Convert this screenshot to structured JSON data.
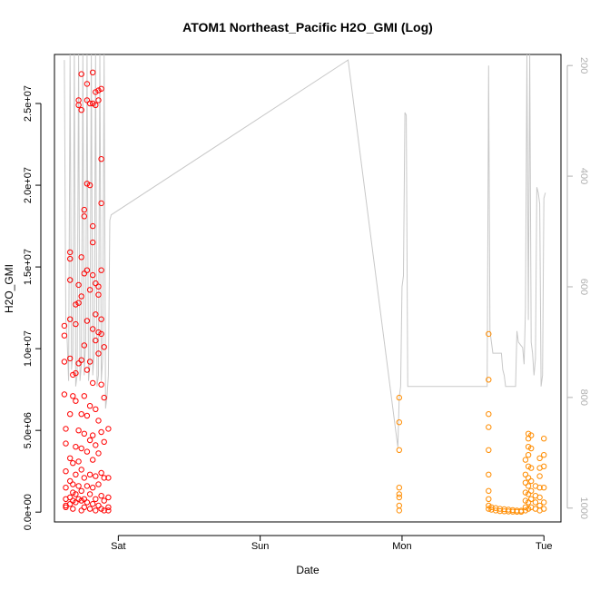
{
  "chart_data": {
    "type": "scatter",
    "title": "ATOM1 Northeast_Pacific H2O_GMI (Log)",
    "xlabel": "Date",
    "ylabel": "H2O_GMI",
    "x_ticks": [
      {
        "label": "Sat",
        "day": 1.0
      },
      {
        "label": "Sun",
        "day": 2.0
      },
      {
        "label": "Mon",
        "day": 3.0
      },
      {
        "label": "Tue",
        "day": 4.0
      }
    ],
    "xlim_days": [
      0.55,
      4.12
    ],
    "y_ticks": [
      {
        "label": "0.0e+00",
        "value": 0
      },
      {
        "label": "5.0e+06",
        "value": 5000000
      },
      {
        "label": "1.0e+07",
        "value": 10000000
      },
      {
        "label": "1.5e+07",
        "value": 15000000
      },
      {
        "label": "2.0e+07",
        "value": 20000000
      },
      {
        "label": "2.5e+07",
        "value": 25000000
      }
    ],
    "ylim": [
      -600000,
      28000000
    ],
    "y2_ticks": [
      {
        "label": "200",
        "value": 200
      },
      {
        "label": "400",
        "value": 400
      },
      {
        "label": "600",
        "value": 600
      },
      {
        "label": "800",
        "value": 800
      },
      {
        "label": "1000",
        "value": 1000
      }
    ],
    "y2lim": [
      1025,
      180
    ],
    "y2_reversed": true,
    "colors": {
      "series_sat": "#ff0000",
      "series_mon_tue": "#ff8c00",
      "secondary_line": "#c8c8c8",
      "axis": "#000000",
      "secondary_axis": "#b0b0b0"
    },
    "series": [
      {
        "color": "#ff0000",
        "points": [
          [
            0.62,
            7200000
          ],
          [
            0.62,
            9200000
          ],
          [
            0.62,
            10800000
          ],
          [
            0.62,
            11400000
          ],
          [
            0.63,
            5100000
          ],
          [
            0.63,
            4200000
          ],
          [
            0.63,
            2500000
          ],
          [
            0.63,
            1500000
          ],
          [
            0.63,
            800000
          ],
          [
            0.63,
            400000
          ],
          [
            0.63,
            300000
          ],
          [
            0.66,
            15900000
          ],
          [
            0.66,
            15500000
          ],
          [
            0.66,
            14200000
          ],
          [
            0.66,
            11800000
          ],
          [
            0.66,
            9400000
          ],
          [
            0.66,
            6000000
          ],
          [
            0.66,
            3300000
          ],
          [
            0.66,
            1900000
          ],
          [
            0.66,
            900000
          ],
          [
            0.66,
            500000
          ],
          [
            0.68,
            8400000
          ],
          [
            0.68,
            7100000
          ],
          [
            0.68,
            3000000
          ],
          [
            0.68,
            1700000
          ],
          [
            0.68,
            1200000
          ],
          [
            0.68,
            700000
          ],
          [
            0.68,
            200000
          ],
          [
            0.7,
            12700000
          ],
          [
            0.7,
            11500000
          ],
          [
            0.7,
            8500000
          ],
          [
            0.7,
            6800000
          ],
          [
            0.7,
            4000000
          ],
          [
            0.7,
            2300000
          ],
          [
            0.7,
            1100000
          ],
          [
            0.7,
            600000
          ],
          [
            0.72,
            25200000
          ],
          [
            0.72,
            24900000
          ],
          [
            0.72,
            13900000
          ],
          [
            0.72,
            12800000
          ],
          [
            0.72,
            9100000
          ],
          [
            0.72,
            5000000
          ],
          [
            0.72,
            3100000
          ],
          [
            0.72,
            1600000
          ],
          [
            0.72,
            800000
          ],
          [
            0.74,
            26800000
          ],
          [
            0.74,
            24600000
          ],
          [
            0.74,
            15600000
          ],
          [
            0.74,
            13200000
          ],
          [
            0.74,
            9300000
          ],
          [
            0.74,
            6000000
          ],
          [
            0.74,
            3900000
          ],
          [
            0.74,
            2600000
          ],
          [
            0.74,
            1300000
          ],
          [
            0.74,
            700000
          ],
          [
            0.74,
            100000
          ],
          [
            0.76,
            18500000
          ],
          [
            0.76,
            18100000
          ],
          [
            0.76,
            14600000
          ],
          [
            0.76,
            10200000
          ],
          [
            0.76,
            7100000
          ],
          [
            0.76,
            4800000
          ],
          [
            0.76,
            2100000
          ],
          [
            0.76,
            800000
          ],
          [
            0.76,
            300000
          ],
          [
            0.78,
            26200000
          ],
          [
            0.78,
            25200000
          ],
          [
            0.78,
            20100000
          ],
          [
            0.78,
            14800000
          ],
          [
            0.78,
            11700000
          ],
          [
            0.78,
            8700000
          ],
          [
            0.78,
            5900000
          ],
          [
            0.78,
            3700000
          ],
          [
            0.78,
            1600000
          ],
          [
            0.78,
            600000
          ],
          [
            0.8,
            25000000
          ],
          [
            0.8,
            20000000
          ],
          [
            0.8,
            13600000
          ],
          [
            0.8,
            9200000
          ],
          [
            0.8,
            6500000
          ],
          [
            0.8,
            4400000
          ],
          [
            0.8,
            2300000
          ],
          [
            0.8,
            1100000
          ],
          [
            0.8,
            200000
          ],
          [
            0.82,
            26900000
          ],
          [
            0.82,
            25000000
          ],
          [
            0.82,
            17500000
          ],
          [
            0.82,
            16500000
          ],
          [
            0.82,
            14500000
          ],
          [
            0.82,
            11200000
          ],
          [
            0.82,
            7900000
          ],
          [
            0.82,
            4700000
          ],
          [
            0.82,
            3200000
          ],
          [
            0.82,
            1500000
          ],
          [
            0.82,
            500000
          ],
          [
            0.84,
            25700000
          ],
          [
            0.84,
            24900000
          ],
          [
            0.84,
            14000000
          ],
          [
            0.84,
            12100000
          ],
          [
            0.84,
            10500000
          ],
          [
            0.84,
            6300000
          ],
          [
            0.84,
            4100000
          ],
          [
            0.84,
            2200000
          ],
          [
            0.84,
            800000
          ],
          [
            0.84,
            100000
          ],
          [
            0.86,
            25800000
          ],
          [
            0.86,
            25200000
          ],
          [
            0.86,
            13800000
          ],
          [
            0.86,
            13300000
          ],
          [
            0.86,
            11000000
          ],
          [
            0.86,
            9700000
          ],
          [
            0.86,
            5600000
          ],
          [
            0.86,
            3600000
          ],
          [
            0.86,
            1700000
          ],
          [
            0.86,
            400000
          ],
          [
            0.88,
            25900000
          ],
          [
            0.88,
            21600000
          ],
          [
            0.88,
            18900000
          ],
          [
            0.88,
            14800000
          ],
          [
            0.88,
            11800000
          ],
          [
            0.88,
            10900000
          ],
          [
            0.88,
            7800000
          ],
          [
            0.88,
            4900000
          ],
          [
            0.88,
            2400000
          ],
          [
            0.88,
            1000000
          ],
          [
            0.88,
            200000
          ],
          [
            0.9,
            10100000
          ],
          [
            0.9,
            7000000
          ],
          [
            0.9,
            4300000
          ],
          [
            0.9,
            2100000
          ],
          [
            0.9,
            700000
          ],
          [
            0.9,
            100000
          ],
          [
            0.93,
            5100000
          ],
          [
            0.93,
            2100000
          ],
          [
            0.93,
            900000
          ],
          [
            0.93,
            300000
          ],
          [
            0.93,
            100000
          ]
        ]
      },
      {
        "color": "#ff8c00",
        "points": [
          [
            2.98,
            7000000
          ],
          [
            2.98,
            5500000
          ],
          [
            2.98,
            3800000
          ],
          [
            2.98,
            1500000
          ],
          [
            2.98,
            1100000
          ],
          [
            2.98,
            900000
          ],
          [
            2.98,
            400000
          ],
          [
            2.98,
            100000
          ],
          [
            3.61,
            10900000
          ],
          [
            3.61,
            8100000
          ],
          [
            3.61,
            6000000
          ],
          [
            3.61,
            5200000
          ],
          [
            3.61,
            3800000
          ],
          [
            3.61,
            2300000
          ],
          [
            3.61,
            1300000
          ],
          [
            3.61,
            800000
          ],
          [
            3.61,
            400000
          ],
          [
            3.61,
            200000
          ],
          [
            3.63,
            300000
          ],
          [
            3.63,
            150000
          ],
          [
            3.66,
            250000
          ],
          [
            3.66,
            100000
          ],
          [
            3.69,
            200000
          ],
          [
            3.69,
            60000
          ],
          [
            3.72,
            180000
          ],
          [
            3.72,
            50000
          ],
          [
            3.75,
            150000
          ],
          [
            3.75,
            40000
          ],
          [
            3.78,
            120000
          ],
          [
            3.78,
            30000
          ],
          [
            3.81,
            100000
          ],
          [
            3.81,
            20000
          ],
          [
            3.84,
            90000
          ],
          [
            3.84,
            20000
          ],
          [
            3.87,
            3200000
          ],
          [
            3.87,
            2300000
          ],
          [
            3.87,
            1800000
          ],
          [
            3.87,
            1200000
          ],
          [
            3.87,
            700000
          ],
          [
            3.87,
            300000
          ],
          [
            3.87,
            100000
          ],
          [
            3.89,
            4800000
          ],
          [
            3.89,
            4500000
          ],
          [
            3.89,
            4000000
          ],
          [
            3.89,
            3500000
          ],
          [
            3.89,
            2800000
          ],
          [
            3.89,
            2100000
          ],
          [
            3.89,
            1600000
          ],
          [
            3.89,
            1100000
          ],
          [
            3.89,
            600000
          ],
          [
            3.89,
            200000
          ],
          [
            3.91,
            4700000
          ],
          [
            3.91,
            3900000
          ],
          [
            3.91,
            2700000
          ],
          [
            3.91,
            1900000
          ],
          [
            3.91,
            1300000
          ],
          [
            3.91,
            800000
          ],
          [
            3.91,
            300000
          ],
          [
            3.94,
            1600000
          ],
          [
            3.94,
            1000000
          ],
          [
            3.94,
            600000
          ],
          [
            3.94,
            200000
          ],
          [
            3.97,
            3300000
          ],
          [
            3.97,
            2700000
          ],
          [
            3.97,
            2200000
          ],
          [
            3.97,
            1500000
          ],
          [
            3.97,
            900000
          ],
          [
            3.97,
            400000
          ],
          [
            3.97,
            100000
          ],
          [
            4.0,
            4500000
          ],
          [
            4.0,
            3500000
          ],
          [
            4.0,
            2800000
          ],
          [
            4.0,
            1500000
          ],
          [
            4.0,
            600000
          ],
          [
            4.0,
            200000
          ]
        ]
      }
    ],
    "secondary_line": {
      "color": "#c8c8c8",
      "points": [
        [
          0.62,
          190
        ],
        [
          0.63,
          660
        ],
        [
          0.64,
          700
        ],
        [
          0.65,
          770
        ],
        [
          0.66,
          180
        ],
        [
          0.67,
          750
        ],
        [
          0.68,
          720
        ],
        [
          0.69,
          180
        ],
        [
          0.7,
          780
        ],
        [
          0.71,
          760
        ],
        [
          0.72,
          180
        ],
        [
          0.73,
          770
        ],
        [
          0.74,
          740
        ],
        [
          0.75,
          180
        ],
        [
          0.76,
          760
        ],
        [
          0.77,
          700
        ],
        [
          0.78,
          180
        ],
        [
          0.79,
          770
        ],
        [
          0.8,
          740
        ],
        [
          0.81,
          180
        ],
        [
          0.82,
          760
        ],
        [
          0.83,
          720
        ],
        [
          0.84,
          180
        ],
        [
          0.85,
          780
        ],
        [
          0.86,
          760
        ],
        [
          0.87,
          180
        ],
        [
          0.88,
          770
        ],
        [
          0.89,
          730
        ],
        [
          0.9,
          180
        ],
        [
          0.91,
          820
        ],
        [
          0.92,
          800
        ],
        [
          0.93,
          760
        ],
        [
          0.94,
          480
        ],
        [
          0.95,
          470
        ],
        [
          2.62,
          190
        ],
        [
          2.97,
          890
        ],
        [
          2.98,
          800
        ],
        [
          2.99,
          780
        ],
        [
          3.0,
          600
        ],
        [
          3.01,
          580
        ],
        [
          3.02,
          285
        ],
        [
          3.03,
          290
        ],
        [
          3.04,
          780
        ],
        [
          3.6,
          780
        ],
        [
          3.61,
          200
        ],
        [
          3.62,
          680
        ],
        [
          3.63,
          700
        ],
        [
          3.64,
          720
        ],
        [
          3.7,
          720
        ],
        [
          3.71,
          750
        ],
        [
          3.72,
          760
        ],
        [
          3.73,
          780
        ],
        [
          3.8,
          780
        ],
        [
          3.81,
          680
        ],
        [
          3.82,
          700
        ],
        [
          3.85,
          710
        ],
        [
          3.86,
          740
        ],
        [
          3.87,
          640
        ],
        [
          3.88,
          180
        ],
        [
          3.89,
          660
        ],
        [
          3.9,
          180
        ],
        [
          3.91,
          700
        ],
        [
          3.92,
          720
        ],
        [
          3.93,
          760
        ],
        [
          3.94,
          730
        ],
        [
          3.95,
          420
        ],
        [
          3.96,
          430
        ],
        [
          3.97,
          450
        ],
        [
          3.98,
          780
        ],
        [
          3.99,
          760
        ],
        [
          4.0,
          440
        ],
        [
          4.01,
          430
        ]
      ]
    }
  }
}
